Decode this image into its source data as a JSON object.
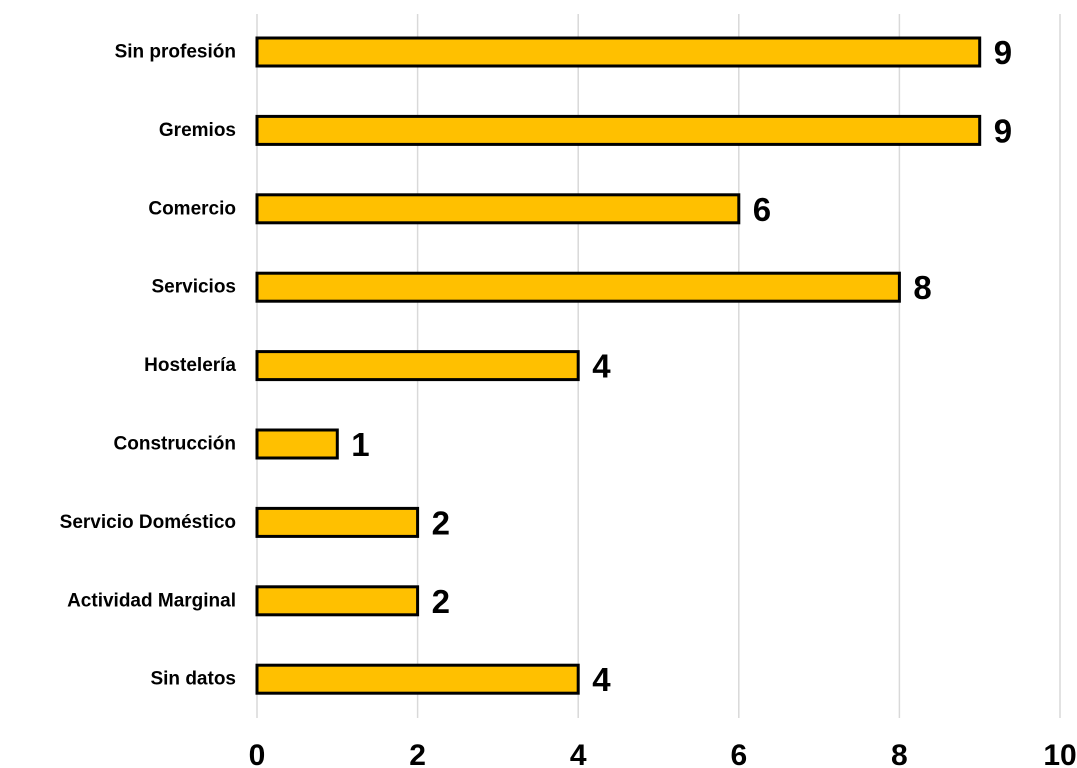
{
  "chart_data": {
    "type": "bar",
    "orientation": "horizontal",
    "categories": [
      "Sin profesión",
      "Gremios",
      "Comercio",
      "Servicios",
      "Hostelería",
      "Construcción",
      "Servicio Doméstico",
      "Actividad Marginal",
      "Sin datos"
    ],
    "values": [
      9,
      9,
      6,
      8,
      4,
      1,
      2,
      2,
      4
    ],
    "xlim": [
      0,
      10
    ],
    "xticks": [
      "0",
      "2",
      "4",
      "6",
      "8",
      "10"
    ],
    "title": "",
    "xlabel": "",
    "ylabel": "",
    "grid": "vertical",
    "legend": "none",
    "data_labels": true,
    "colors": {
      "bar": "#FFC000",
      "bar_outline": "#000000",
      "grid": "#D9D9D9"
    }
  }
}
